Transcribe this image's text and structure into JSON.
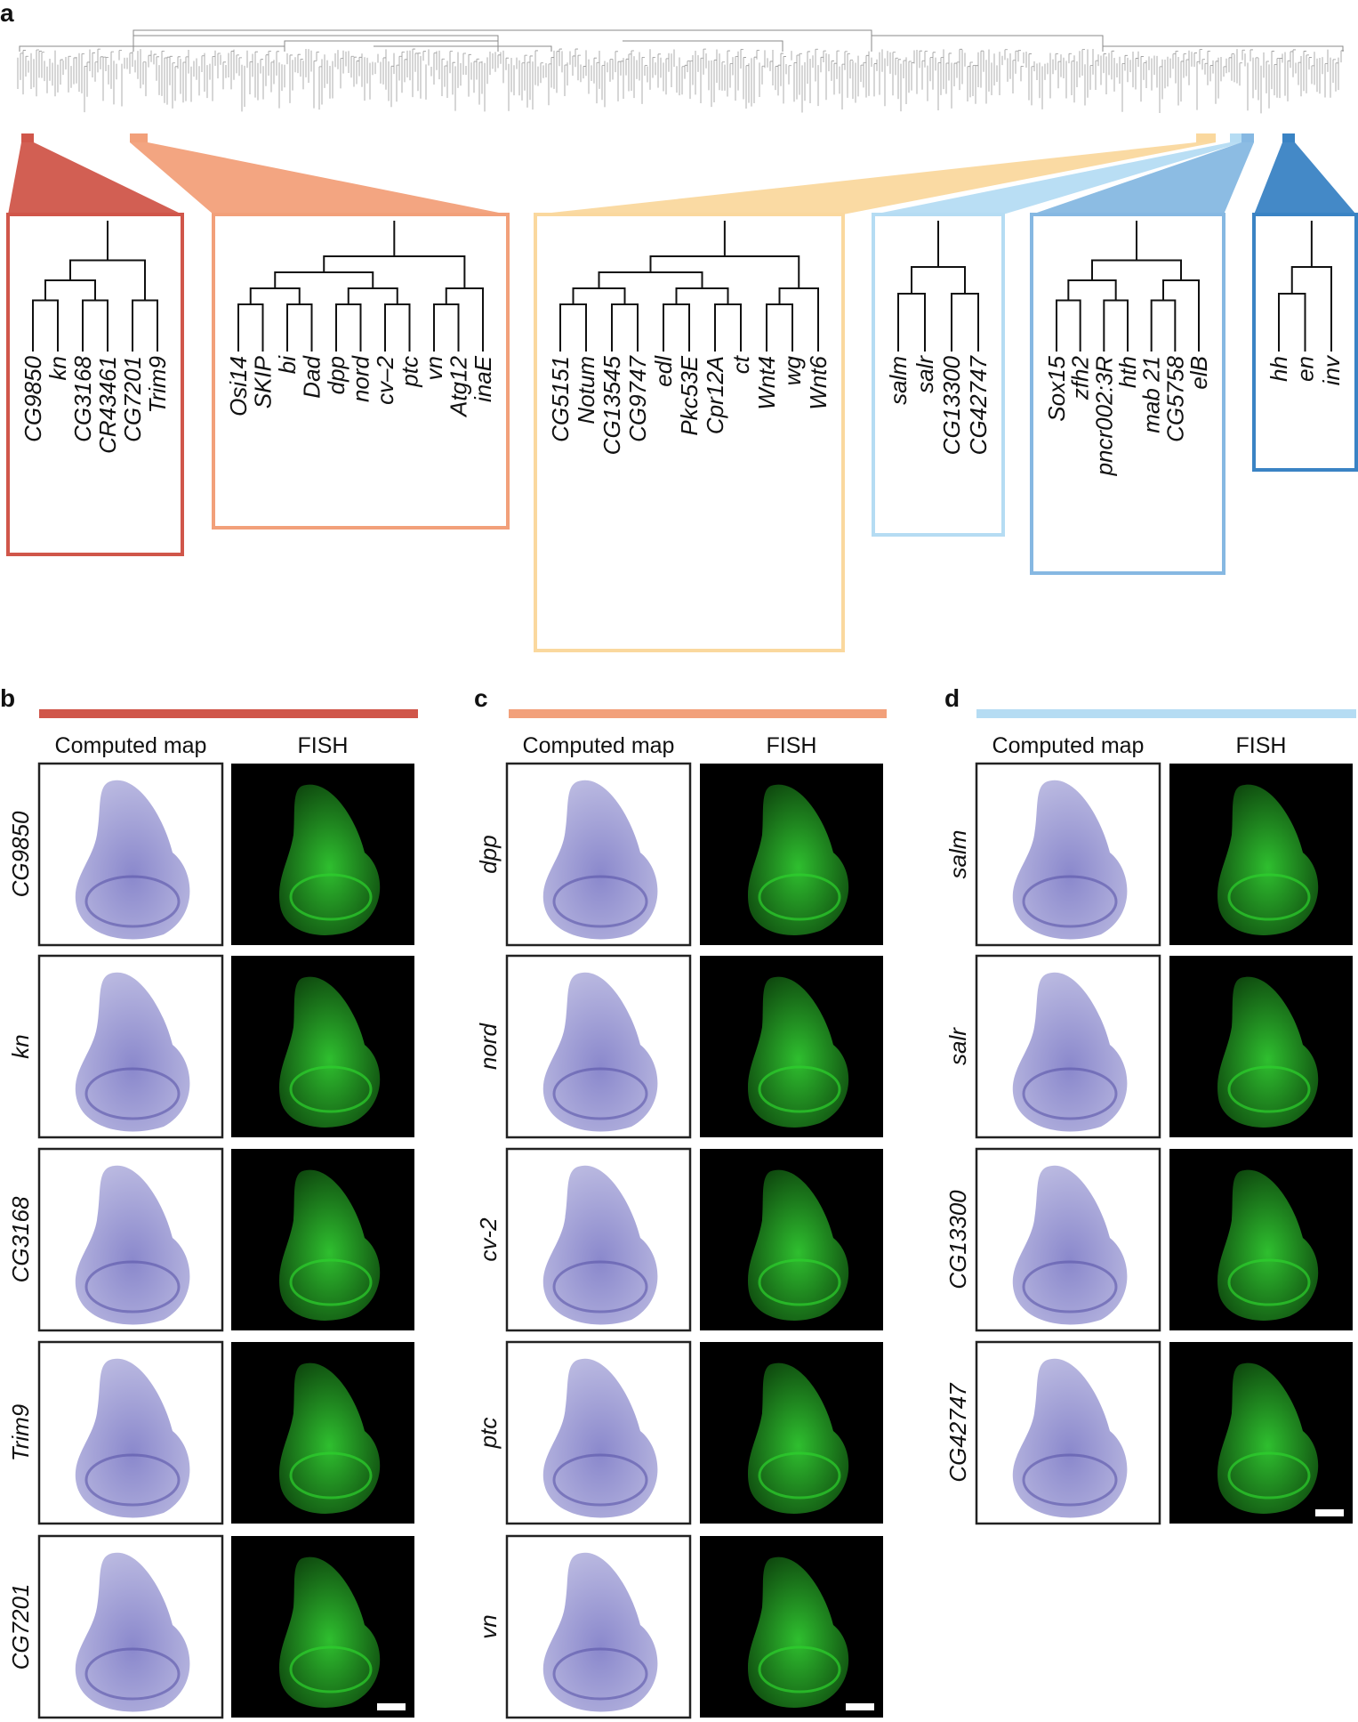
{
  "panel_labels": {
    "a": "a",
    "b": "b",
    "c": "c",
    "d": "d"
  },
  "colors": {
    "red": "#d0564a",
    "orange": "#f2a07a",
    "yellow": "#fad89e",
    "light_blue": "#b5dcf3",
    "mid_blue": "#86b8e2",
    "dark_blue": "#3a83c4",
    "map_fill": "#9f9fd2",
    "map_dark": "#5a55a8",
    "fish": "#2ed12e"
  },
  "clusters": [
    {
      "name": "cluster-red",
      "color": "red",
      "genes": [
        "CG9850",
        "kn",
        "CG3168",
        "CR43461",
        "CG7201",
        "Trim9"
      ]
    },
    {
      "name": "cluster-orange",
      "color": "orange",
      "genes": [
        "Osi14",
        "SKIP",
        "bi",
        "Dad",
        "dpp",
        "nord",
        "cv–2",
        "ptc",
        "vn",
        "Atg12",
        "inaE"
      ]
    },
    {
      "name": "cluster-yellow",
      "color": "yellow",
      "genes": [
        "CG5151",
        "Notum",
        "CG13545",
        "CG9747",
        "edl",
        "Pkc53E",
        "Cpr12A",
        "ct",
        "Wnt4",
        "wg",
        "Wnt6"
      ]
    },
    {
      "name": "cluster-lightblue",
      "color": "light_blue",
      "genes": [
        "salm",
        "salr",
        "CG13300",
        "CG42747"
      ]
    },
    {
      "name": "cluster-midblue",
      "color": "mid_blue",
      "genes": [
        "Sox15",
        "zfh2",
        "pncr002:3R",
        "hth",
        "mab 21",
        "CG5758",
        "elB"
      ]
    },
    {
      "name": "cluster-darkblue",
      "color": "dark_blue",
      "genes": [
        "hh",
        "en",
        "inv"
      ]
    }
  ],
  "headers": {
    "computed_map": "Computed map",
    "fish": "FISH"
  },
  "panels": [
    {
      "letter": "b",
      "color": "red",
      "genes": [
        "CG9850",
        "kn",
        "CG3168",
        "Trim9",
        "CG7201"
      ]
    },
    {
      "letter": "c",
      "color": "orange",
      "genes": [
        "dpp",
        "nord",
        "cv-2",
        "ptc",
        "vn"
      ]
    },
    {
      "letter": "d",
      "color": "light_blue",
      "genes": [
        "salm",
        "salr",
        "CG13300",
        "CG42747"
      ]
    }
  ]
}
